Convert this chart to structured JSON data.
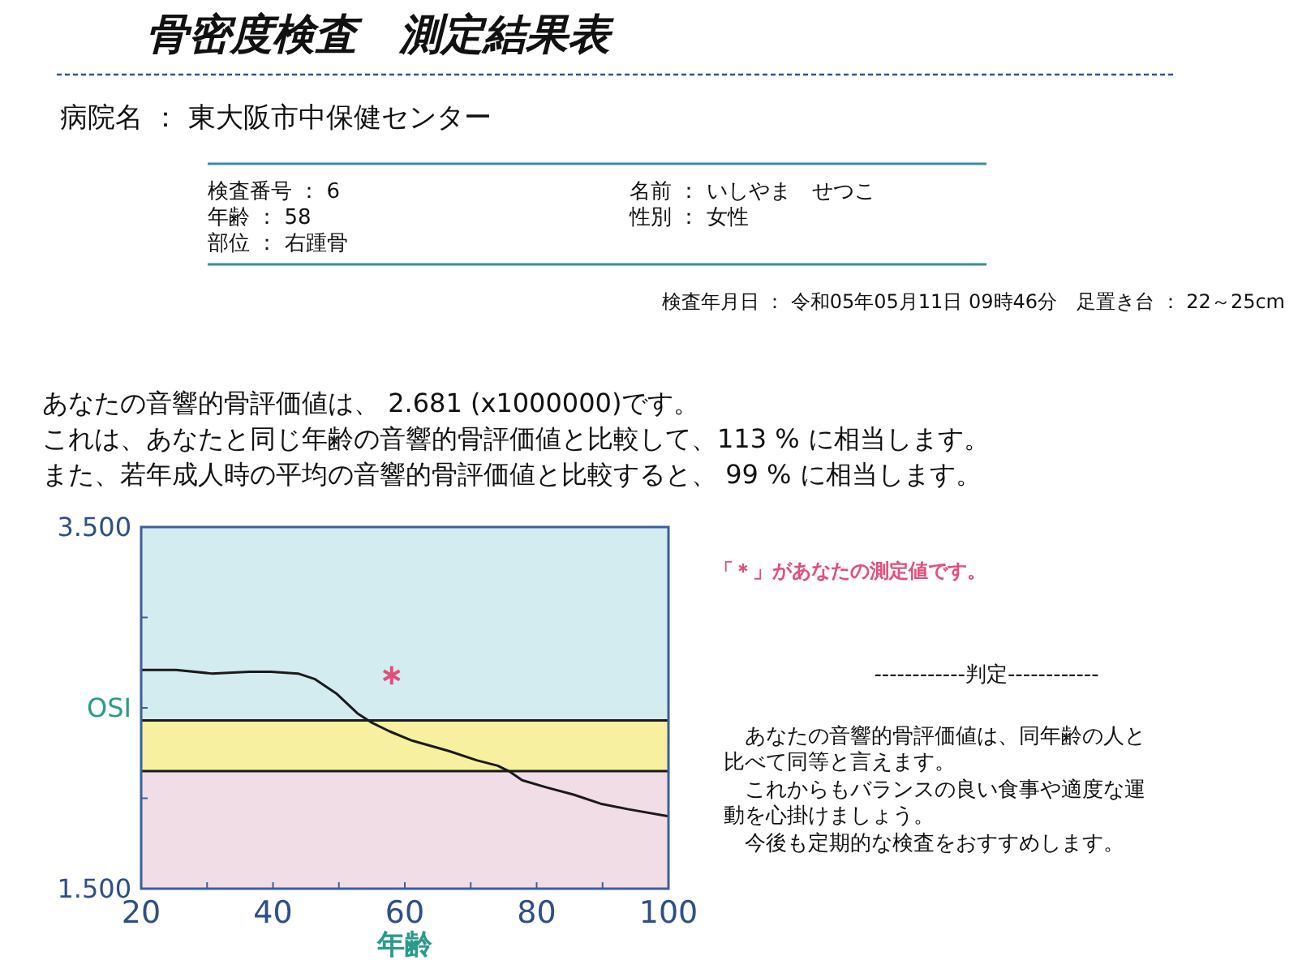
{
  "chart_data": {
    "type": "line",
    "title": "骨密度検査　測定結果表",
    "xlabel": "年齢",
    "xlim": [
      20,
      100
    ],
    "xticks": [
      20,
      {
        "value": 30,
        "label": null
      },
      40,
      {
        "value": 50,
        "label": null
      },
      60,
      {
        "value": 70,
        "label": null
      },
      80,
      {
        "value": 90,
        "label": null
      },
      100
    ],
    "ylim": [
      1.5,
      3.5
    ],
    "yticks": [
      {
        "value": 1.5,
        "label": "1.500"
      },
      {
        "value": 2.0,
        "label": null
      },
      {
        "value": 2.5,
        "label": "OSI"
      },
      {
        "value": 3.0,
        "label": null
      },
      {
        "value": 3.5,
        "label": "3.500"
      }
    ],
    "series": [
      {
        "color": "#1a1a1a",
        "marker": "none",
        "line_style": "solid",
        "x": [
          20,
          25.3,
          30.7,
          36.4,
          39.7,
          43.8,
          46.3,
          49.6,
          52.8,
          54.9,
          57.7,
          61,
          66.8,
          70.9,
          74.1,
          75.8,
          77.8,
          81.5,
          85.6,
          89.7,
          93.8,
          100
        ],
        "values": [
          2.71,
          2.71,
          2.69,
          2.7,
          2.7,
          2.69,
          2.66,
          2.58,
          2.47,
          2.42,
          2.37,
          2.32,
          2.26,
          2.21,
          2.18,
          2.15,
          2.1,
          2.06,
          2.02,
          1.97,
          1.94,
          1.9
        ]
      },
      {
        "type": "scatter",
        "color": "#e0507a",
        "marker": "cross",
        "x": [
          58
        ],
        "values": [
          2.68
        ]
      }
    ],
    "bands": [
      {
        "axis": "y",
        "from": 2.43,
        "to": 3.5,
        "color": "#d3ecf0"
      },
      {
        "axis": "y",
        "from": 2.15,
        "to": 2.43,
        "color": "#f7f0a0"
      },
      {
        "axis": "y",
        "from": 1.5,
        "to": 2.15,
        "color": "#f1dde6"
      }
    ],
    "ref_lines": [
      {
        "axis": "y",
        "value": 2.43,
        "color": "#1a1a1a"
      },
      {
        "axis": "y",
        "value": 2.15,
        "color": "#1a1a1a"
      }
    ],
    "grid": false,
    "annotations": [
      "病院名 ： 東大阪市中保健センター",
      "検査番号 ： 6",
      "年齢 ： 58",
      "部位 ： 右踵骨",
      "名前 ： いしやま　せつこ",
      "性別 ： 女性",
      "検査年月日 ： 令和05年05月11日 09時46分　足置き台 ： 22～25cm",
      "あなたの音響的骨評価値は、 2.681 (x1000000)です。",
      "これは、あなたと同じ年齢の音響的骨評価値と比較して、113 % に相当します。",
      "また、若年成人時の平均の音響的骨評価値と比較すると、 99 % に相当します。",
      "「＊」があなたの測定値です。",
      "------------判定------------",
      "　あなたの音響的骨評価値は、同年齢の人と",
      "比べて同等と言えます。",
      "　これからもバランスの良い食事や適度な運",
      "動を心掛けましょう。",
      "　今後も定期的な検査をおすすめします。"
    ]
  }
}
